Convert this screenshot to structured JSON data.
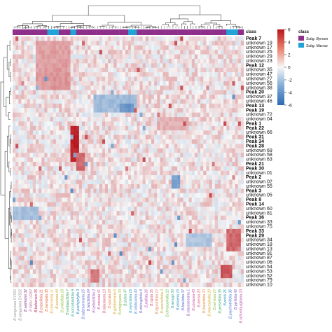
{
  "chart_data": {
    "type": "heatmap",
    "class_legend": {
      "title": "class",
      "entries": [
        {
          "label": "Subg. Byrsom",
          "color": "#8e2f8a"
        },
        {
          "label": "Subg. Macroz",
          "color": "#21a3d8"
        }
      ]
    },
    "color_scale": {
      "title": "",
      "range": [
        -6,
        6
      ],
      "ticks": [
        6,
        4,
        2,
        0,
        -2,
        -4,
        -6
      ],
      "low_color": "#2d6bb3",
      "mid_color": "#f7f7f7",
      "high_color": "#b8151c"
    },
    "column_class_pattern": [
      "Subg. Byrsom",
      "Subg. Byrsom",
      "Subg. Byrsom",
      "Subg. Byrsom",
      "Subg. Byrsom",
      "Subg. Byrsom",
      "Subg. Byrsom",
      "Subg. Byrsom",
      "Subg. Byrsom",
      "Subg. Byrsom",
      "Subg. Byrsom",
      "Subg. Byrsom",
      "Subg. Macroz",
      "Subg. Macroz",
      "Subg. Macroz",
      "Subg. Macroz",
      "Subg. Byrsom",
      "Subg. Byrsom",
      "Subg. Byrsom",
      "Subg. Byrsom",
      "Subg. Macroz",
      "Subg. Macroz",
      "Subg. Byrsom",
      "Subg. Byrsom",
      "Subg. Byrsom",
      "Subg. Byrsom",
      "Subg. Byrsom",
      "Subg. Byrsom",
      "Subg. Byrsom",
      "Subg. Byrsom",
      "Subg. Byrsom",
      "Subg. Byrsom",
      "Subg. Byrsom",
      "Subg. Byrsom",
      "Subg. Byrsom",
      "Subg. Byrsom",
      "Subg. Byrsom",
      "Subg. Byrsom",
      "Subg. Byrsom",
      "Subg. Byrsom",
      "Subg. Macroz",
      "Subg. Macroz",
      "Subg. Macroz",
      "Subg. Byrsom",
      "Subg. Byrsom",
      "Subg. Byrsom",
      "Subg. Byrsom",
      "Subg. Byrsom",
      "Subg. Byrsom",
      "Subg. Byrsom",
      "Subg. Byrsom",
      "Subg. Byrsom",
      "Subg. Byrsom",
      "Subg. Byrsom",
      "Subg. Byrsom",
      "Subg. Byrsom",
      "Subg. Byrsom",
      "Subg. Byrsom",
      "Subg. Byrsom",
      "Subg. Byrsom",
      "Subg. Byrsom",
      "Subg. Byrsom",
      "Subg. Byrsom",
      "Subg. Byrsom",
      "Subg. Byrsom",
      "Subg. Byrsom",
      "Subg. Byrsom",
      "Subg. Byrsom",
      "Subg. Byrsom",
      "Subg. Byrsom",
      "Subg. Byrsom",
      "Subg. Byrsom",
      "Subg. Byrsom",
      "Subg. Byrsom",
      "Subg. Macroz",
      "Subg. Macroz",
      "Subg. Macroz",
      "Subg. Macroz",
      "Subg. Byrsom",
      "Subg. Byrsom"
    ],
    "rows": [
      {
        "label": "Peak 7",
        "bold": true
      },
      {
        "label": "unknown 19",
        "bold": false
      },
      {
        "label": "unknown 17",
        "bold": false
      },
      {
        "label": "unknown 25",
        "bold": false
      },
      {
        "label": "unknown 29",
        "bold": false
      },
      {
        "label": "unknown 23",
        "bold": false
      },
      {
        "label": "Peak 12",
        "bold": true
      },
      {
        "label": "unknown 35",
        "bold": false
      },
      {
        "label": "unknown 47",
        "bold": false
      },
      {
        "label": "unknown 27",
        "bold": false
      },
      {
        "label": "unknown 56",
        "bold": false
      },
      {
        "label": "unknown 38",
        "bold": false
      },
      {
        "label": "Peak 20",
        "bold": true
      },
      {
        "label": "unknown 37",
        "bold": false
      },
      {
        "label": "unknown 46",
        "bold": false
      },
      {
        "label": "Peak 13",
        "bold": true
      },
      {
        "label": "Peak 19",
        "bold": true
      },
      {
        "label": "unknown 72",
        "bold": false
      },
      {
        "label": "unknown 04",
        "bold": false
      },
      {
        "label": "Peak 1",
        "bold": true
      },
      {
        "label": "Peak 22",
        "bold": true
      },
      {
        "label": "unknown 66",
        "bold": false
      },
      {
        "label": "Peak 31",
        "bold": true
      },
      {
        "label": "Peak 34",
        "bold": true
      },
      {
        "label": "Peak 28",
        "bold": true
      },
      {
        "label": "unknown 69",
        "bold": false
      },
      {
        "label": "unknown 58",
        "bold": false
      },
      {
        "label": "unknown 63",
        "bold": false
      },
      {
        "label": "Peak 21",
        "bold": true
      },
      {
        "label": "Peak 30",
        "bold": true
      },
      {
        "label": "unknown 01",
        "bold": false
      },
      {
        "label": "Peak 2",
        "bold": true
      },
      {
        "label": "unknown 02",
        "bold": false
      },
      {
        "label": "unknown 55",
        "bold": false
      },
      {
        "label": "Peak 3",
        "bold": true
      },
      {
        "label": "unknown 05",
        "bold": false
      },
      {
        "label": "Peak 8",
        "bold": true
      },
      {
        "label": "Peak 14",
        "bold": true
      },
      {
        "label": "unknown 60",
        "bold": false
      },
      {
        "label": "unknown 81",
        "bold": false
      },
      {
        "label": "Peak 36",
        "bold": true
      },
      {
        "label": "unknown 33",
        "bold": false
      },
      {
        "label": "unknown 75",
        "bold": false
      },
      {
        "label": "Peak 33",
        "bold": true
      },
      {
        "label": "Peak 29",
        "bold": true
      },
      {
        "label": "unknown 34",
        "bold": false
      },
      {
        "label": "unknown 18",
        "bold": false
      },
      {
        "label": "unknown 13",
        "bold": false
      },
      {
        "label": "unknown 91",
        "bold": false
      },
      {
        "label": "unknown 87",
        "bold": false
      },
      {
        "label": "unknown 06",
        "bold": false
      },
      {
        "label": "unknown 54",
        "bold": false
      },
      {
        "label": "unknown 53",
        "bold": false
      },
      {
        "label": "unknown 52",
        "bold": false
      },
      {
        "label": "unknown 79",
        "bold": false
      },
      {
        "label": "unknown 10",
        "bold": false
      }
    ],
    "hotspots": [
      {
        "rows": [
          20,
          27
        ],
        "cols": [
          20,
          22
        ],
        "value": 5.5
      },
      {
        "rows": [
          22,
          24
        ],
        "cols": [
          21,
          22
        ],
        "value": 6
      },
      {
        "rows": [
          26,
          29
        ],
        "cols": [
          22,
          24
        ],
        "value": 3.5
      },
      {
        "rows": [
          1,
          11
        ],
        "cols": [
          8,
          19
        ],
        "value": 2.0
      },
      {
        "rows": [
          7,
          11
        ],
        "cols": [
          13,
          18
        ],
        "value": 2.2
      },
      {
        "rows": [
          13,
          16
        ],
        "cols": [
          28,
          42
        ],
        "value": -2.2
      },
      {
        "rows": [
          15,
          16
        ],
        "cols": [
          37,
          41
        ],
        "value": -4.0
      },
      {
        "rows": [
          43,
          47
        ],
        "cols": [
          74,
          78
        ],
        "value": 3.5
      },
      {
        "rows": [
          51,
          53
        ],
        "cols": [
          72,
          75
        ],
        "value": 4.0
      },
      {
        "rows": [
          52,
          54
        ],
        "cols": [
          27,
          29
        ],
        "value": 3.0
      },
      {
        "rows": [
          31,
          33
        ],
        "cols": [
          55,
          57
        ],
        "value": -3.5
      },
      {
        "rows": [
          38,
          40
        ],
        "cols": [
          0,
          8
        ],
        "value": -2.0
      },
      {
        "rows": [
          44,
          46
        ],
        "cols": [
          60,
          68
        ],
        "value": -1.8
      },
      {
        "rows": [
          18,
          20
        ],
        "cols": [
          50,
          60
        ],
        "value": 1.5
      }
    ],
    "column_labels": [
      {
        "text": "B.sanguinea SYS55",
        "color": "#9a9a9a"
      },
      {
        "text": "B.sanguinea SYS02",
        "color": "#8e8e8e"
      },
      {
        "text": "B.wetmorei 32",
        "color": "#8e2f8a"
      },
      {
        "text": "B.fallax 14262",
        "color": "#b5739f"
      },
      {
        "text": "B.bahiensis 05",
        "color": "#c2185b"
      },
      {
        "text": "B.crassifolia 21",
        "color": "#d9534f"
      },
      {
        "text": "B.laevigata 38",
        "color": "#e06d2e"
      },
      {
        "text": "B.intermedia 11",
        "color": "#e8a33d"
      },
      {
        "text": "B.sericea 44",
        "color": "#caa21e"
      },
      {
        "text": "B.umbellata 18",
        "color": "#8bbd3a"
      },
      {
        "text": "B.verbascifolia 7",
        "color": "#3aa655"
      },
      {
        "text": "B.coccolobifolia 9",
        "color": "#2e9e8f"
      },
      {
        "text": "B.pachyphylla 3",
        "color": "#2f86c7"
      },
      {
        "text": "B.salzmanniana 16",
        "color": "#4b6ed0"
      },
      {
        "text": "B.lancifolia 24",
        "color": "#6f52c4"
      },
      {
        "text": "B.cydoniifolia 2",
        "color": "#a24fb8"
      },
      {
        "text": "B.rotunda 41",
        "color": "#c94f94"
      },
      {
        "text": "B.stipulacea 13",
        "color": "#d84b6a"
      },
      {
        "text": "B.spicata 28",
        "color": "#e57b3c"
      },
      {
        "text": "B.gardneriana 6",
        "color": "#d9a425"
      },
      {
        "text": "B.orbignyana 33",
        "color": "#9db635"
      },
      {
        "text": "B.dubia 47",
        "color": "#3fae74"
      },
      {
        "text": "B.myricifolia 19",
        "color": "#2a9fb0"
      },
      {
        "text": "B.nitidissima 40",
        "color": "#3d7fd1"
      },
      {
        "text": "B.oblongifolia 8",
        "color": "#7a5ec9"
      },
      {
        "text": "B.pallida 26",
        "color": "#b04fae"
      },
      {
        "text": "B.rigida 35",
        "color": "#d6557f"
      },
      {
        "text": "B.ligustrifolia 12",
        "color": "#e27a45"
      },
      {
        "text": "B.vacciniifolia 4",
        "color": "#c9a93a"
      },
      {
        "text": "B.chrysophylla 22",
        "color": "#6fb845"
      },
      {
        "text": "B.aerugo 30",
        "color": "#31a98b"
      },
      {
        "text": "B.amoena 15",
        "color": "#2b8fc0"
      },
      {
        "text": "B.basiloba 37",
        "color": "#5568cf"
      },
      {
        "text": "B.clausseniana 1",
        "color": "#9553c0"
      },
      {
        "text": "B.coriacea 43",
        "color": "#c74e9e"
      },
      {
        "text": "B.densa 20",
        "color": "#dc5a63"
      },
      {
        "text": "B.linearifolia 10",
        "color": "#e5873a"
      },
      {
        "text": "B.macrophylla 29",
        "color": "#cfae2f"
      },
      {
        "text": "B.nervosa 17",
        "color": "#86bb3c"
      },
      {
        "text": "B.perseifolia 39",
        "color": "#3aaa6c"
      },
      {
        "text": "B.pohlii 25",
        "color": "#2b9cb3"
      },
      {
        "text": "B.psychotriifolia 36",
        "color": "#3f77cf"
      },
      {
        "text": "B.pyrifolia 42",
        "color": "#8058c7"
      },
      {
        "text": "B.schomburgkiana 23",
        "color": "#b651a6"
      }
    ]
  }
}
